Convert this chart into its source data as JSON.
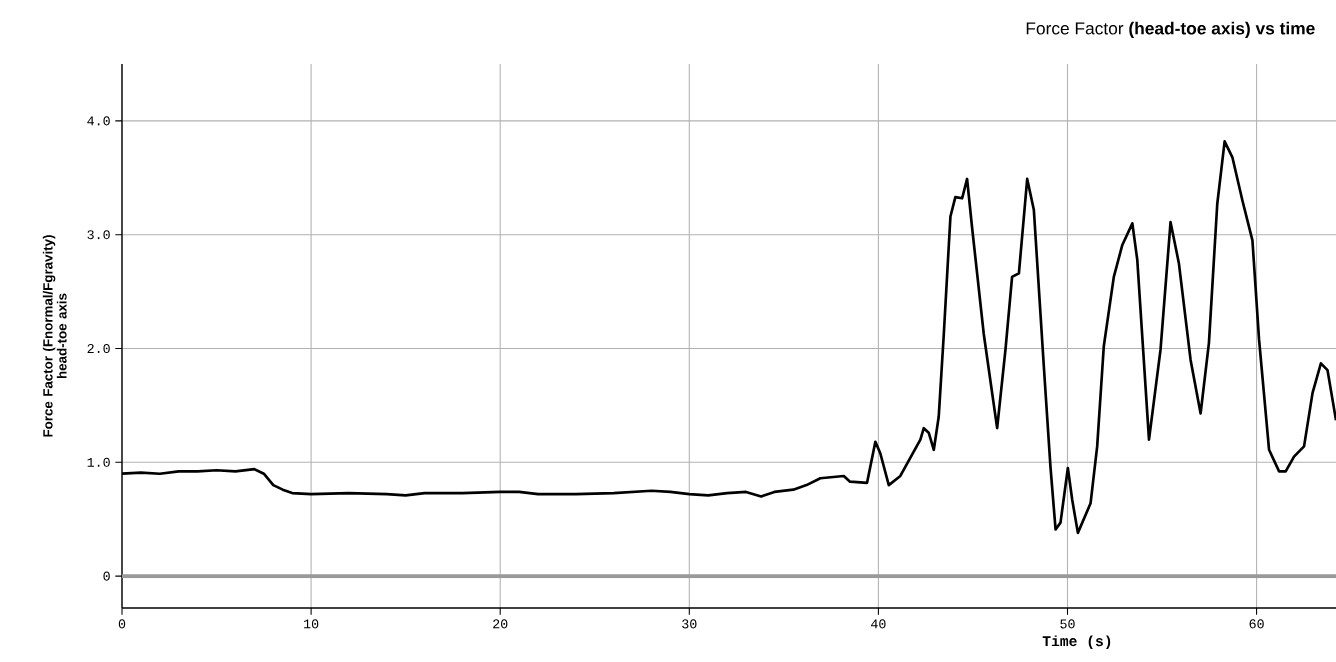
{
  "chart_data": {
    "type": "line",
    "title": "Force Factor **(head-toe axis) vs time**",
    "xlabel": "Time (s)",
    "ylabel": "Force Factor (Fnormal/Fgravity) head-toe axis",
    "series": [
      {
        "color": "#000000",
        "x": [
          0,
          1,
          2,
          3,
          4,
          5,
          6,
          7,
          7.5,
          8,
          8.5,
          9,
          10,
          12,
          14,
          15,
          16,
          18,
          20,
          21,
          22,
          24,
          26,
          28,
          29,
          30,
          31,
          32,
          33,
          33.8,
          34.5,
          35.5,
          36.2,
          36.93,
          38.17,
          38.5,
          39.4,
          39.84,
          40.1,
          40.55,
          41.16,
          42.22,
          42.4,
          42.66,
          42.93,
          43.19,
          43.46,
          43.81,
          44.07,
          44.43,
          44.69,
          44.95,
          45.57,
          46.28,
          46.72,
          47.07,
          47.43,
          47.87,
          48.22,
          48.75,
          49.1,
          49.37,
          49.63,
          50.02,
          50.25,
          50.55,
          51.22,
          51.57,
          51.92,
          52.45,
          52.9,
          53.43,
          53.69,
          54.31,
          54.92,
          55.45,
          55.89,
          56.51,
          57.04,
          57.48,
          57.92,
          58.31,
          58.72,
          59.25,
          59.78,
          60.13,
          60.66,
          61.19,
          61.54,
          61.98,
          62.51,
          62.96,
          63.4,
          63.75,
          64.2
        ],
        "values": [
          0.9,
          0.91,
          0.9,
          0.92,
          0.92,
          0.93,
          0.92,
          0.94,
          0.9,
          0.8,
          0.76,
          0.73,
          0.72,
          0.73,
          0.72,
          0.71,
          0.73,
          0.73,
          0.74,
          0.74,
          0.72,
          0.72,
          0.73,
          0.75,
          0.74,
          0.72,
          0.71,
          0.73,
          0.74,
          0.7,
          0.74,
          0.76,
          0.8,
          0.86,
          0.88,
          0.83,
          0.82,
          1.18,
          1.08,
          0.8,
          0.88,
          1.2,
          1.3,
          1.26,
          1.11,
          1.4,
          2.13,
          3.16,
          3.33,
          3.32,
          3.49,
          3.07,
          2.13,
          1.3,
          1.99,
          2.63,
          2.66,
          3.49,
          3.22,
          1.84,
          0.96,
          0.41,
          0.47,
          0.95,
          0.67,
          0.38,
          0.64,
          1.14,
          2.02,
          2.63,
          2.91,
          3.1,
          2.78,
          1.2,
          1.99,
          3.11,
          2.75,
          1.9,
          1.43,
          2.05,
          3.27,
          3.82,
          3.68,
          3.3,
          2.95,
          2.08,
          1.11,
          0.92,
          0.92,
          1.05,
          1.14,
          1.61,
          1.87,
          1.81,
          1.37
        ]
      }
    ],
    "xlim": [
      0,
      64.2
    ],
    "ylim": [
      -0.28,
      4.5
    ],
    "xticks": [
      0,
      10,
      20,
      30,
      40,
      50,
      60
    ],
    "yticks": [
      0,
      {
        "value": 1,
        "label": "1.0"
      },
      {
        "value": 2,
        "label": "2.0"
      },
      {
        "value": 3,
        "label": "3.0"
      },
      {
        "value": 4,
        "label": "4.0"
      }
    ],
    "grid": true,
    "marker": "none",
    "line_style": "solid",
    "ref_lines": [
      {
        "axis": "y",
        "value": 0,
        "color": "#999999"
      }
    ]
  }
}
